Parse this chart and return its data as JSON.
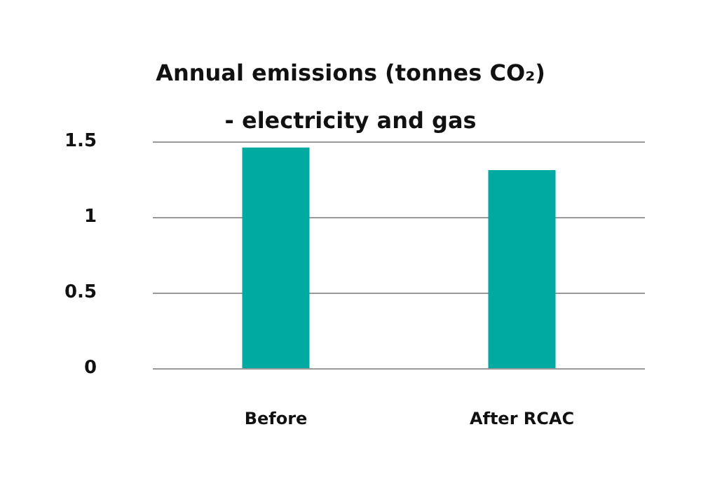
{
  "chart_data": {
    "type": "bar",
    "title": "Annual emissions (tonnes CO₂)\n- electricity and gas",
    "categories": [
      "Before",
      "After RCAC"
    ],
    "values": [
      1.46,
      1.31
    ],
    "color": "#00aaa0",
    "ylim": [
      0,
      1.5
    ],
    "yticks": [
      0,
      0.5,
      1,
      1.5
    ],
    "grid": "y"
  }
}
